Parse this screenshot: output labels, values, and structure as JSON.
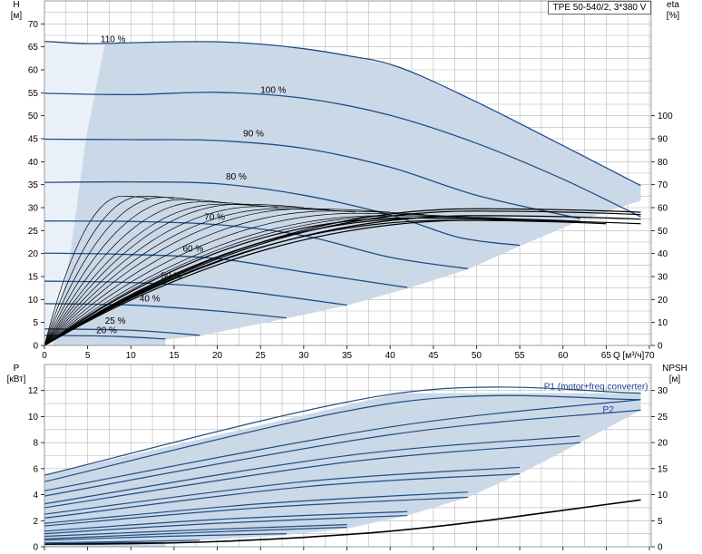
{
  "title_box": "TPE 50-540/2, 3*380 V",
  "colors": {
    "curve": "#1f4e82",
    "area": "#cbd8e8",
    "area_light": "#e9f0f8",
    "grid": "#b8b8b8",
    "eta": "#000000",
    "power_label": "#1a3e8f"
  },
  "chart_data": [
    {
      "type": "line",
      "name": "head-chart",
      "x_label": "Q [м³/ч]",
      "y_label_left": [
        "H",
        "[м]"
      ],
      "y_label_right": [
        "eta",
        "[%]"
      ],
      "xlim": [
        0,
        70
      ],
      "ylim": [
        0,
        70
      ],
      "x_ticks": [
        0,
        5,
        10,
        15,
        20,
        25,
        30,
        35,
        40,
        45,
        50,
        55,
        60,
        65,
        70
      ],
      "y_ticks": [
        0,
        5,
        10,
        15,
        20,
        25,
        30,
        35,
        40,
        45,
        50,
        55,
        60,
        65,
        70
      ],
      "y2_ticks": [
        0,
        10,
        20,
        30,
        40,
        50,
        60,
        70,
        80,
        90,
        100
      ],
      "y2_lim": [
        0,
        140
      ],
      "series": [
        {
          "name": "110 %",
          "label": "110 %",
          "label_at": [
            6.5,
            66.0
          ],
          "points": [
            [
              0,
              66.2
            ],
            [
              5,
              65.7
            ],
            [
              10,
              65.9
            ],
            [
              15,
              66.1
            ],
            [
              20,
              66.1
            ],
            [
              25,
              65.6
            ],
            [
              30,
              64.6
            ],
            [
              35,
              63.1
            ],
            [
              41,
              60.6
            ],
            [
              50,
              53.0
            ],
            [
              60,
              43.5
            ],
            [
              69,
              34.8
            ]
          ]
        },
        {
          "name": "100 %",
          "label": "100 %",
          "label_at": [
            25,
            55.0
          ],
          "points": [
            [
              0,
              54.9
            ],
            [
              10,
              54.6
            ],
            [
              20,
              55.1
            ],
            [
              30,
              53.8
            ],
            [
              40,
              50.1
            ],
            [
              50,
              44.0
            ],
            [
              60,
              36.2
            ],
            [
              69,
              28.0
            ]
          ]
        },
        {
          "name": "90 %",
          "label": "90 %",
          "label_at": [
            23,
            45.5
          ],
          "points": [
            [
              0,
              44.9
            ],
            [
              10,
              44.8
            ],
            [
              20,
              44.6
            ],
            [
              30,
              42.9
            ],
            [
              40,
              38.8
            ],
            [
              50,
              32.7
            ],
            [
              62,
              27.6
            ]
          ]
        },
        {
          "name": "80 %",
          "label": "80 %",
          "label_at": [
            21,
            36.1
          ],
          "points": [
            [
              0,
              35.5
            ],
            [
              10,
              35.6
            ],
            [
              20,
              35.2
            ],
            [
              30,
              32.7
            ],
            [
              40,
              28.4
            ],
            [
              48,
              23.5
            ],
            [
              55,
              21.8
            ]
          ]
        },
        {
          "name": "70 %",
          "label": "70 %",
          "label_at": [
            18.5,
            27.3
          ],
          "points": [
            [
              0,
              27.1
            ],
            [
              10,
              27.0
            ],
            [
              20,
              26.3
            ],
            [
              30,
              23.9
            ],
            [
              40,
              19.2
            ],
            [
              49,
              16.7
            ]
          ]
        },
        {
          "name": "60 %",
          "label": "60 %",
          "label_at": [
            16,
            20.4
          ],
          "points": [
            [
              0,
              20.1
            ],
            [
              10,
              19.8
            ],
            [
              20,
              18.9
            ],
            [
              30,
              16.0
            ],
            [
              42,
              12.6
            ]
          ]
        },
        {
          "name": "50 %",
          "label": "50 %",
          "label_at": [
            13.5,
            14.5
          ],
          "points": [
            [
              0,
              14.0
            ],
            [
              10,
              13.7
            ],
            [
              20,
              12.5
            ],
            [
              35,
              8.8
            ]
          ]
        },
        {
          "name": "40 %",
          "label": "40 %",
          "label_at": [
            11,
            9.6
          ],
          "points": [
            [
              0,
              9.1
            ],
            [
              10,
              8.8
            ],
            [
              20,
              7.5
            ],
            [
              28,
              6.0
            ]
          ]
        },
        {
          "name": "25 %",
          "label": "25 %",
          "label_at": [
            7,
            4.7
          ],
          "points": [
            [
              0,
              3.6
            ],
            [
              10,
              3.3
            ],
            [
              18,
              2.2
            ]
          ]
        },
        {
          "name": "20 %",
          "label": "20 %",
          "label_at": [
            6,
            2.7
          ],
          "points": [
            [
              0,
              2.2
            ],
            [
              8,
              2.0
            ],
            [
              14,
              1.4
            ]
          ]
        }
      ],
      "eta_endpoints": [
        [
          12,
          64
        ],
        [
          15,
          64
        ],
        [
          18,
          63
        ],
        [
          21,
          62
        ],
        [
          24,
          61
        ],
        [
          27,
          60
        ],
        [
          30,
          60
        ],
        [
          33,
          59
        ],
        [
          36,
          58
        ],
        [
          40,
          58
        ],
        [
          44,
          57
        ],
        [
          48,
          56
        ],
        [
          52,
          55
        ],
        [
          55,
          55
        ],
        [
          58,
          54
        ],
        [
          62,
          54
        ],
        [
          65,
          53
        ],
        [
          69,
          53
        ],
        [
          69,
          55
        ],
        [
          69,
          57
        ],
        [
          69,
          58
        ]
      ]
    },
    {
      "type": "line",
      "name": "power-chart",
      "x_label": "",
      "y_label_left": [
        "P",
        "[кВт]"
      ],
      "y_label_right": [
        "NPSH",
        "[м]"
      ],
      "xlim": [
        0,
        70
      ],
      "ylim": [
        0,
        14
      ],
      "y_ticks": [
        0,
        2,
        4,
        6,
        8,
        10,
        12
      ],
      "y2_ticks": [
        0,
        5,
        10,
        15,
        20,
        25,
        30
      ],
      "y2_lim": [
        0,
        35
      ],
      "annotations": [
        {
          "text": "P1 (motor+freq.converter)",
          "at": [
            57.8,
            12.1
          ]
        },
        {
          "text": "P2",
          "at": [
            64.6,
            10.3
          ]
        }
      ],
      "series": [
        {
          "name": "P1 110%",
          "points": [
            [
              0,
              5.5
            ],
            [
              41,
              11.8
            ],
            [
              69,
              11.8
            ]
          ]
        },
        {
          "name": "P2 110%",
          "points": [
            [
              0,
              5.0
            ],
            [
              41,
              11.1
            ],
            [
              69,
              11.3
            ]
          ]
        },
        {
          "name": "P1 100%",
          "points": [
            [
              0,
              4.3
            ],
            [
              40,
              9.2
            ],
            [
              69,
              11.3
            ]
          ]
        },
        {
          "name": "P2 100%",
          "points": [
            [
              0,
              3.9
            ],
            [
              40,
              8.6
            ],
            [
              69,
              10.5
            ]
          ]
        },
        {
          "name": "P1 90%",
          "points": [
            [
              0,
              3.3
            ],
            [
              35,
              7.0
            ],
            [
              62,
              8.5
            ]
          ]
        },
        {
          "name": "P2 90%",
          "points": [
            [
              0,
              3.0
            ],
            [
              35,
              6.5
            ],
            [
              62,
              8.0
            ]
          ]
        },
        {
          "name": "P1 80%",
          "points": [
            [
              0,
              2.5
            ],
            [
              30,
              5.0
            ],
            [
              55,
              6.1
            ]
          ]
        },
        {
          "name": "P2 80%",
          "points": [
            [
              0,
              2.2
            ],
            [
              30,
              4.6
            ],
            [
              55,
              5.6
            ]
          ]
        },
        {
          "name": "P1 70%",
          "points": [
            [
              0,
              1.8
            ],
            [
              25,
              3.3
            ],
            [
              49,
              4.2
            ]
          ]
        },
        {
          "name": "P2 70%",
          "points": [
            [
              0,
              1.6
            ],
            [
              25,
              3.0
            ],
            [
              49,
              3.8
            ]
          ]
        },
        {
          "name": "P1 60%",
          "points": [
            [
              0,
              1.2
            ],
            [
              20,
              2.1
            ],
            [
              42,
              2.7
            ]
          ]
        },
        {
          "name": "P2 60%",
          "points": [
            [
              0,
              1.0
            ],
            [
              20,
              1.8
            ],
            [
              42,
              2.4
            ]
          ]
        },
        {
          "name": "P1 50%",
          "points": [
            [
              0,
              0.8
            ],
            [
              18,
              1.3
            ],
            [
              35,
              1.7
            ]
          ]
        },
        {
          "name": "P2 50%",
          "points": [
            [
              0,
              0.6
            ],
            [
              18,
              1.1
            ],
            [
              35,
              1.5
            ]
          ]
        },
        {
          "name": "P1 40%",
          "points": [
            [
              0,
              0.5
            ],
            [
              14,
              0.8
            ],
            [
              28,
              1.0
            ]
          ]
        },
        {
          "name": "P1 25%",
          "points": [
            [
              0,
              0.3
            ],
            [
              10,
              0.4
            ],
            [
              18,
              0.5
            ]
          ]
        },
        {
          "name": "P1 20%",
          "points": [
            [
              0,
              0.2
            ],
            [
              8,
              0.3
            ],
            [
              14,
              0.3
            ]
          ]
        }
      ],
      "npsh": {
        "name": "NPSH",
        "points": [
          [
            0,
            0.5
          ],
          [
            10,
            0.6
          ],
          [
            20,
            1.0
          ],
          [
            30,
            1.8
          ],
          [
            40,
            3.0
          ],
          [
            50,
            4.8
          ],
          [
            60,
            7.0
          ],
          [
            69,
            9.0
          ]
        ]
      }
    }
  ]
}
